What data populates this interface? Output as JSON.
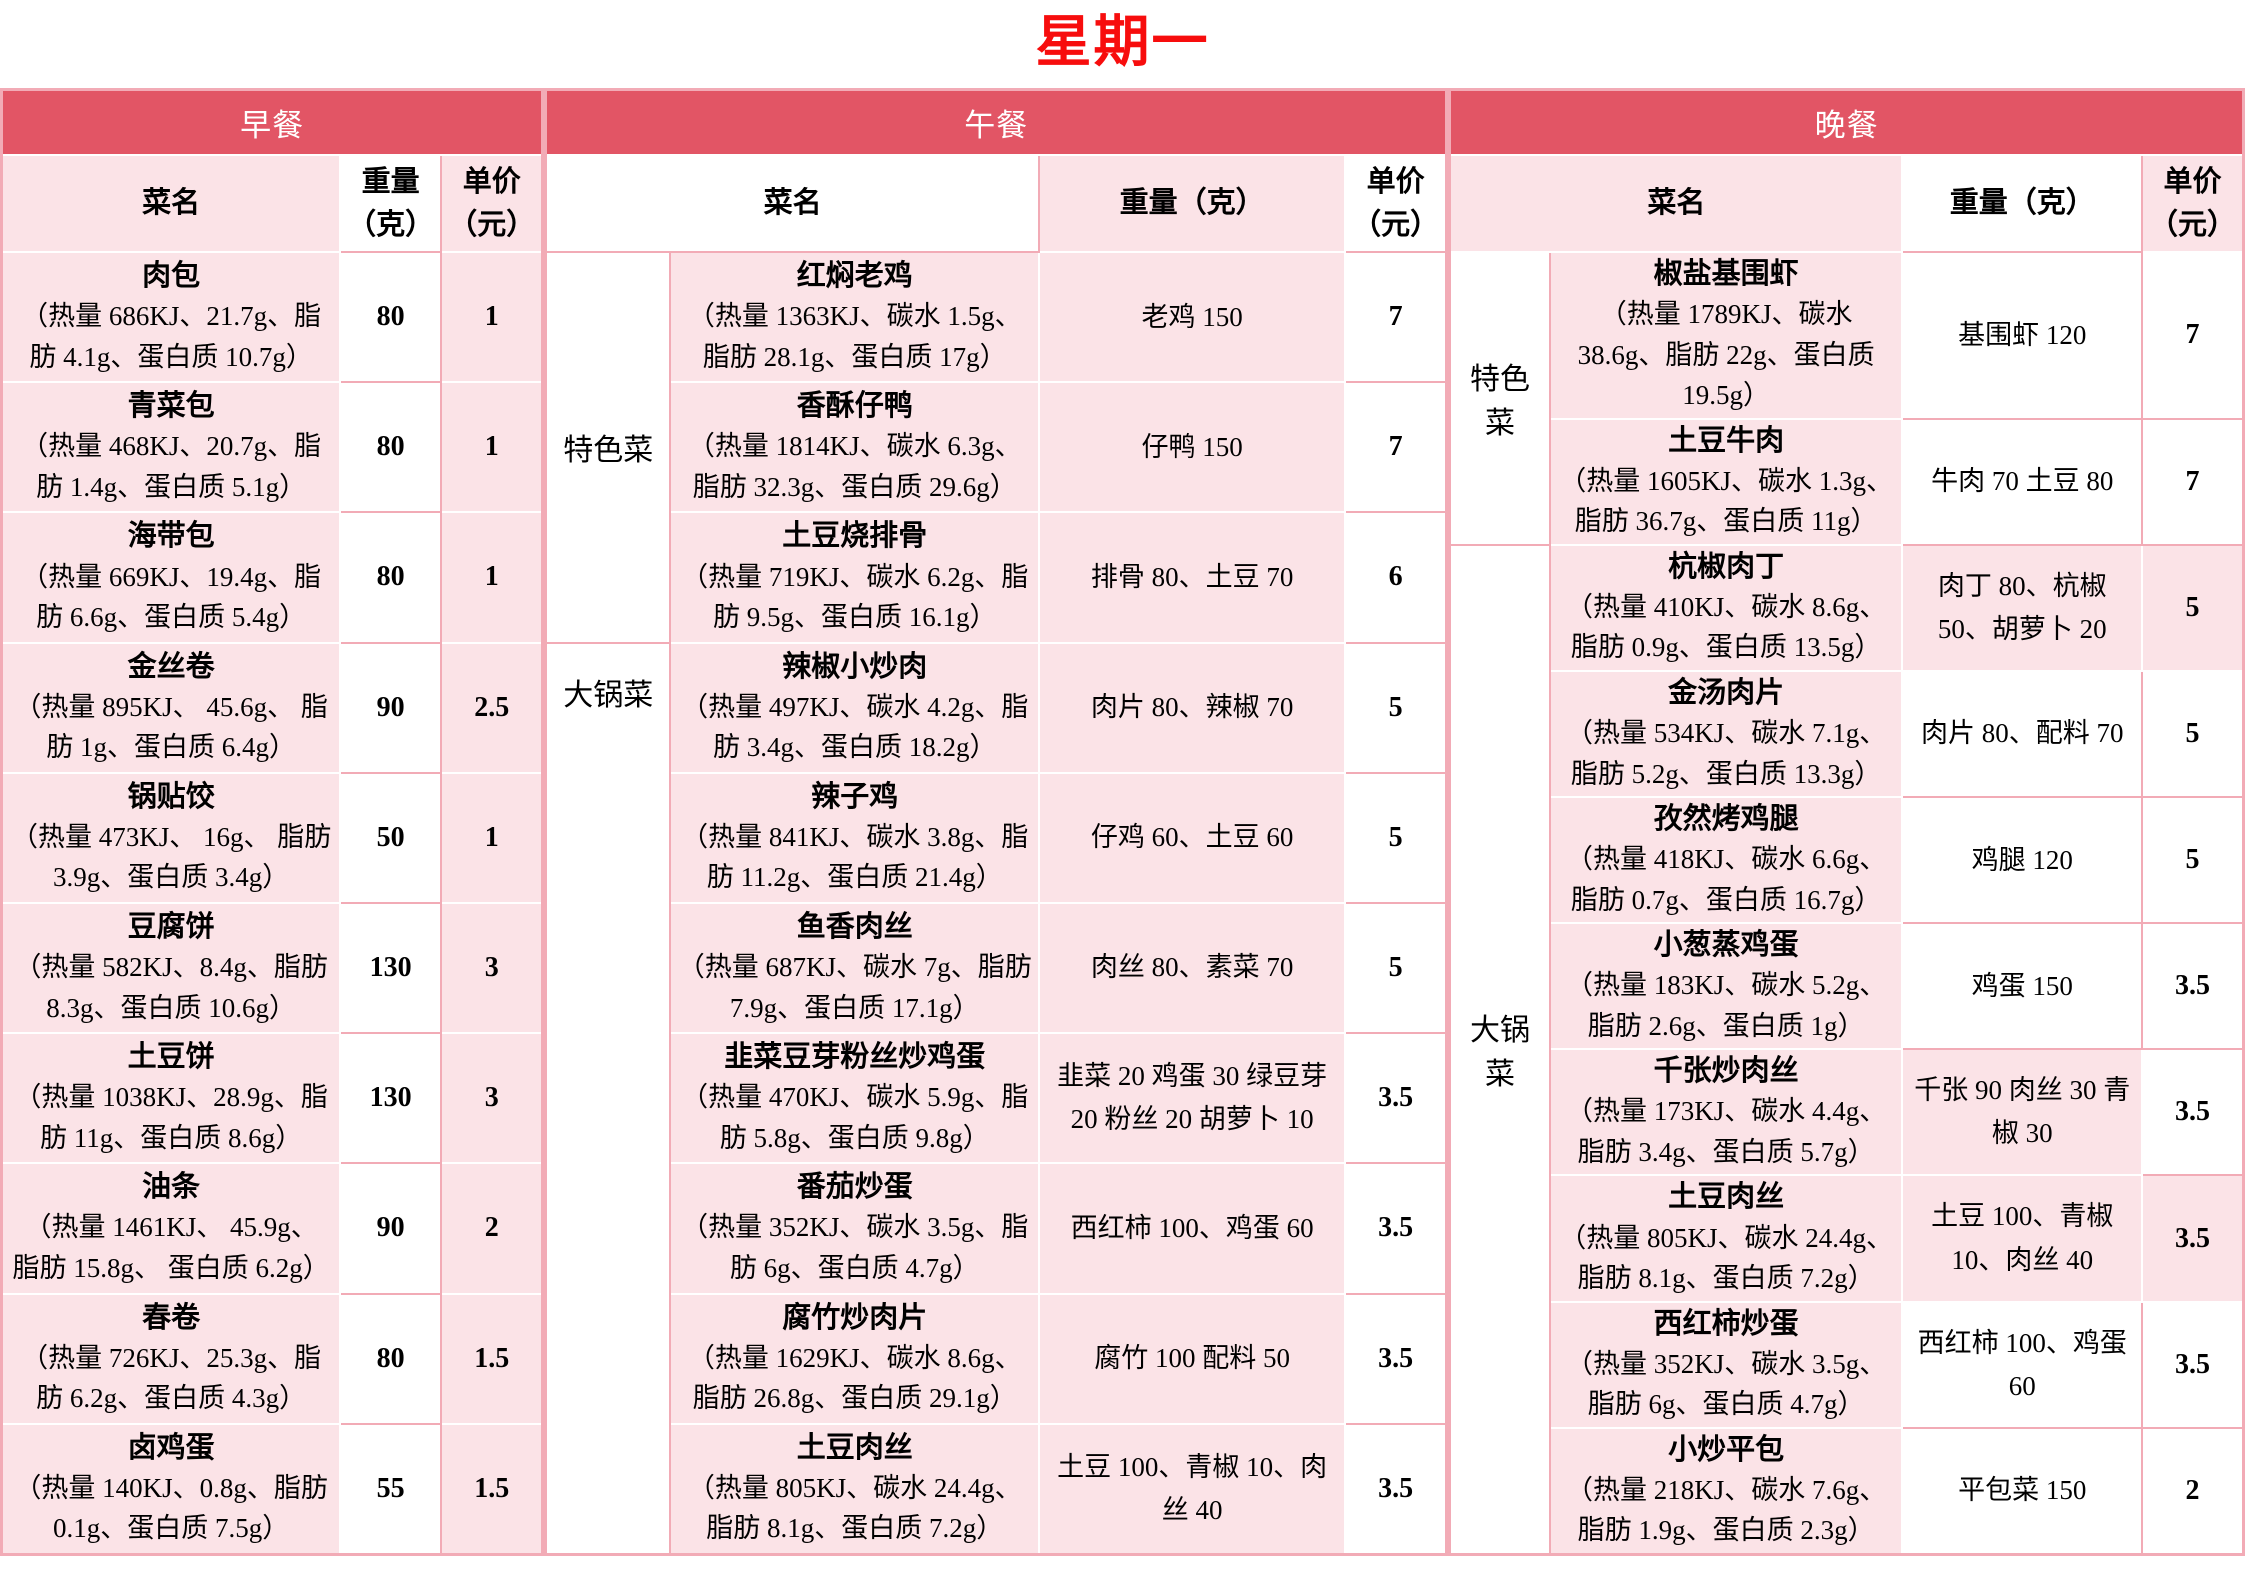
{
  "title": "星期一",
  "colors": {
    "band": "#e25565",
    "cell_pink": "#fbe3e7",
    "grid_pink": "#f2abb6",
    "title_red": "#f70d0d"
  },
  "meals": [
    {
      "name": "早餐",
      "headers": {
        "dish": "菜名",
        "weight": "重量\n（克）",
        "price": "单价\n（元）"
      },
      "categories": [],
      "rows": [
        {
          "dish": "肉包",
          "detail": "（热量 686KJ、21.7g、脂肪 4.1g、蛋白质 10.7g）",
          "weight": "80",
          "price": "1"
        },
        {
          "dish": "青菜包",
          "detail": "（热量 468KJ、20.7g、脂肪 1.4g、蛋白质 5.1g）",
          "weight": "80",
          "price": "1"
        },
        {
          "dish": "海带包",
          "detail": "（热量 669KJ、19.4g、脂肪 6.6g、蛋白质 5.4g）",
          "weight": "80",
          "price": "1"
        },
        {
          "dish": "金丝卷",
          "detail": "（热量 895KJ、 45.6g、 脂肪 1g、蛋白质 6.4g）",
          "weight": "90",
          "price": "2.5"
        },
        {
          "dish": "锅贴饺",
          "detail": "（热量 473KJ、 16g、 脂肪 3.9g、蛋白质 3.4g）",
          "weight": "50",
          "price": "1"
        },
        {
          "dish": "豆腐饼",
          "detail": "（热量 582KJ、8.4g、脂肪 8.3g、蛋白质 10.6g）",
          "weight": "130",
          "price": "3"
        },
        {
          "dish": "土豆饼",
          "detail": "（热量 1038KJ、28.9g、脂肪 11g、蛋白质 8.6g）",
          "weight": "130",
          "price": "3"
        },
        {
          "dish": "油条",
          "detail": "（热量 1461KJ、 45.9g、 脂肪 15.8g、 蛋白质 6.2g）",
          "weight": "90",
          "price": "2"
        },
        {
          "dish": "春卷",
          "detail": "（热量 726KJ、25.3g、脂肪 6.2g、蛋白质 4.3g）",
          "weight": "80",
          "price": "1.5"
        },
        {
          "dish": "卤鸡蛋",
          "detail": "（热量 140KJ、0.8g、脂肪 0.1g、蛋白质 7.5g）",
          "weight": "55",
          "price": "1.5"
        }
      ]
    },
    {
      "name": "午餐",
      "headers": {
        "dish": "菜名",
        "weight": "重量（克）",
        "price": "单价\n（元）"
      },
      "categories": [
        {
          "label": "特色菜",
          "dishes": 3
        },
        {
          "label": "大锅菜",
          "dishes": 7
        }
      ],
      "rows": [
        {
          "dish": "红焖老鸡",
          "detail": "（热量 1363KJ、碳水 1.5g、脂肪 28.1g、蛋白质 17g）",
          "weight": "老鸡 150",
          "price": "7"
        },
        {
          "dish": "香酥仔鸭",
          "detail": "（热量 1814KJ、碳水 6.3g、脂肪 32.3g、蛋白质 29.6g）",
          "weight": "仔鸭 150",
          "price": "7"
        },
        {
          "dish": "土豆烧排骨",
          "detail": "（热量 719KJ、碳水 6.2g、脂肪 9.5g、蛋白质 16.1g）",
          "weight": "排骨 80、土豆 70",
          "price": "6"
        },
        {
          "dish": "辣椒小炒肉",
          "detail": "（热量 497KJ、碳水 4.2g、脂肪 3.4g、蛋白质 18.2g）",
          "weight": "肉片 80、辣椒 70",
          "price": "5"
        },
        {
          "dish": "辣子鸡",
          "detail": "（热量 841KJ、碳水 3.8g、脂肪 11.2g、蛋白质 21.4g）",
          "weight": "仔鸡 60、土豆 60",
          "price": "5"
        },
        {
          "dish": "鱼香肉丝",
          "detail": "（热量 687KJ、碳水 7g、脂肪 7.9g、蛋白质 17.1g）",
          "weight": "肉丝 80、素菜 70",
          "price": "5"
        },
        {
          "dish": "韭菜豆芽粉丝炒鸡蛋",
          "detail": "（热量 470KJ、碳水 5.9g、脂肪 5.8g、蛋白质 9.8g）",
          "weight": "韭菜 20 鸡蛋 30 绿豆芽 20 粉丝 20 胡萝卜 10",
          "price": "3.5"
        },
        {
          "dish": "番茄炒蛋",
          "detail": "（热量 352KJ、碳水 3.5g、脂肪 6g、蛋白质 4.7g）",
          "weight": "西红柿 100、鸡蛋 60",
          "price": "3.5"
        },
        {
          "dish": "腐竹炒肉片",
          "detail": "（热量 1629KJ、碳水 8.6g、脂肪 26.8g、蛋白质 29.1g）",
          "weight": "腐竹 100 配料 50",
          "price": "3.5"
        },
        {
          "dish": "土豆肉丝",
          "detail": "（热量 805KJ、碳水 24.4g、脂肪 8.1g、蛋白质 7.2g）",
          "weight": "土豆 100、青椒 10、肉丝 40",
          "price": "3.5"
        }
      ]
    },
    {
      "name": "晚餐",
      "headers": {
        "dish": "菜名",
        "weight": "重量（克）",
        "price": "单价\n（元）"
      },
      "categories": [
        {
          "label": "特色菜",
          "dishes": 2
        },
        {
          "label": "大锅菜",
          "dishes": 8
        }
      ],
      "rows": [
        {
          "dish": "椒盐基围虾",
          "detail": "（热量 1789KJ、碳水 38.6g、脂肪 22g、蛋白质 19.5g）",
          "weight": "基围虾 120",
          "price": "7"
        },
        {
          "dish": "土豆牛肉",
          "detail": "（热量 1605KJ、碳水 1.3g、脂肪 36.7g、蛋白质 11g）",
          "weight": "牛肉 70 土豆 80",
          "price": "7"
        },
        {
          "dish": "杭椒肉丁",
          "detail": "（热量 410KJ、碳水 8.6g、脂肪 0.9g、蛋白质 13.5g）",
          "weight": "肉丁 80、杭椒 50、胡萝卜 20",
          "price": "5"
        },
        {
          "dish": "金汤肉片",
          "detail": "（热量 534KJ、碳水 7.1g、脂肪 5.2g、蛋白质 13.3g）",
          "weight": "肉片 80、配料 70",
          "price": "5"
        },
        {
          "dish": "孜然烤鸡腿",
          "detail": "（热量 418KJ、碳水 6.6g、脂肪 0.7g、蛋白质 16.7g）",
          "weight": "鸡腿 120",
          "price": "5"
        },
        {
          "dish": "小葱蒸鸡蛋",
          "detail": "（热量 183KJ、碳水 5.2g、脂肪 2.6g、蛋白质 1g）",
          "weight": "鸡蛋 150",
          "price": "3.5"
        },
        {
          "dish": "千张炒肉丝",
          "detail": "（热量 173KJ、碳水 4.4g、脂肪 3.4g、蛋白质 5.7g）",
          "weight": "千张 90 肉丝 30 青椒 30",
          "price": "3.5"
        },
        {
          "dish": "土豆肉丝",
          "detail": "（热量 805KJ、碳水 24.4g、脂肪 8.1g、蛋白质 7.2g）",
          "weight": "土豆 100、青椒 10、肉丝 40",
          "price": "3.5"
        },
        {
          "dish": "西红柿炒蛋",
          "detail": "（热量 352KJ、碳水 3.5g、脂肪 6g、蛋白质 4.7g）",
          "weight": "西红柿 100、鸡蛋 60",
          "price": "3.5"
        },
        {
          "dish": "小炒平包",
          "detail": "（热量 218KJ、碳水 7.6g、脂肪 1.9g、蛋白质 2.3g）",
          "weight": "平包菜 150",
          "price": "2"
        }
      ]
    }
  ]
}
